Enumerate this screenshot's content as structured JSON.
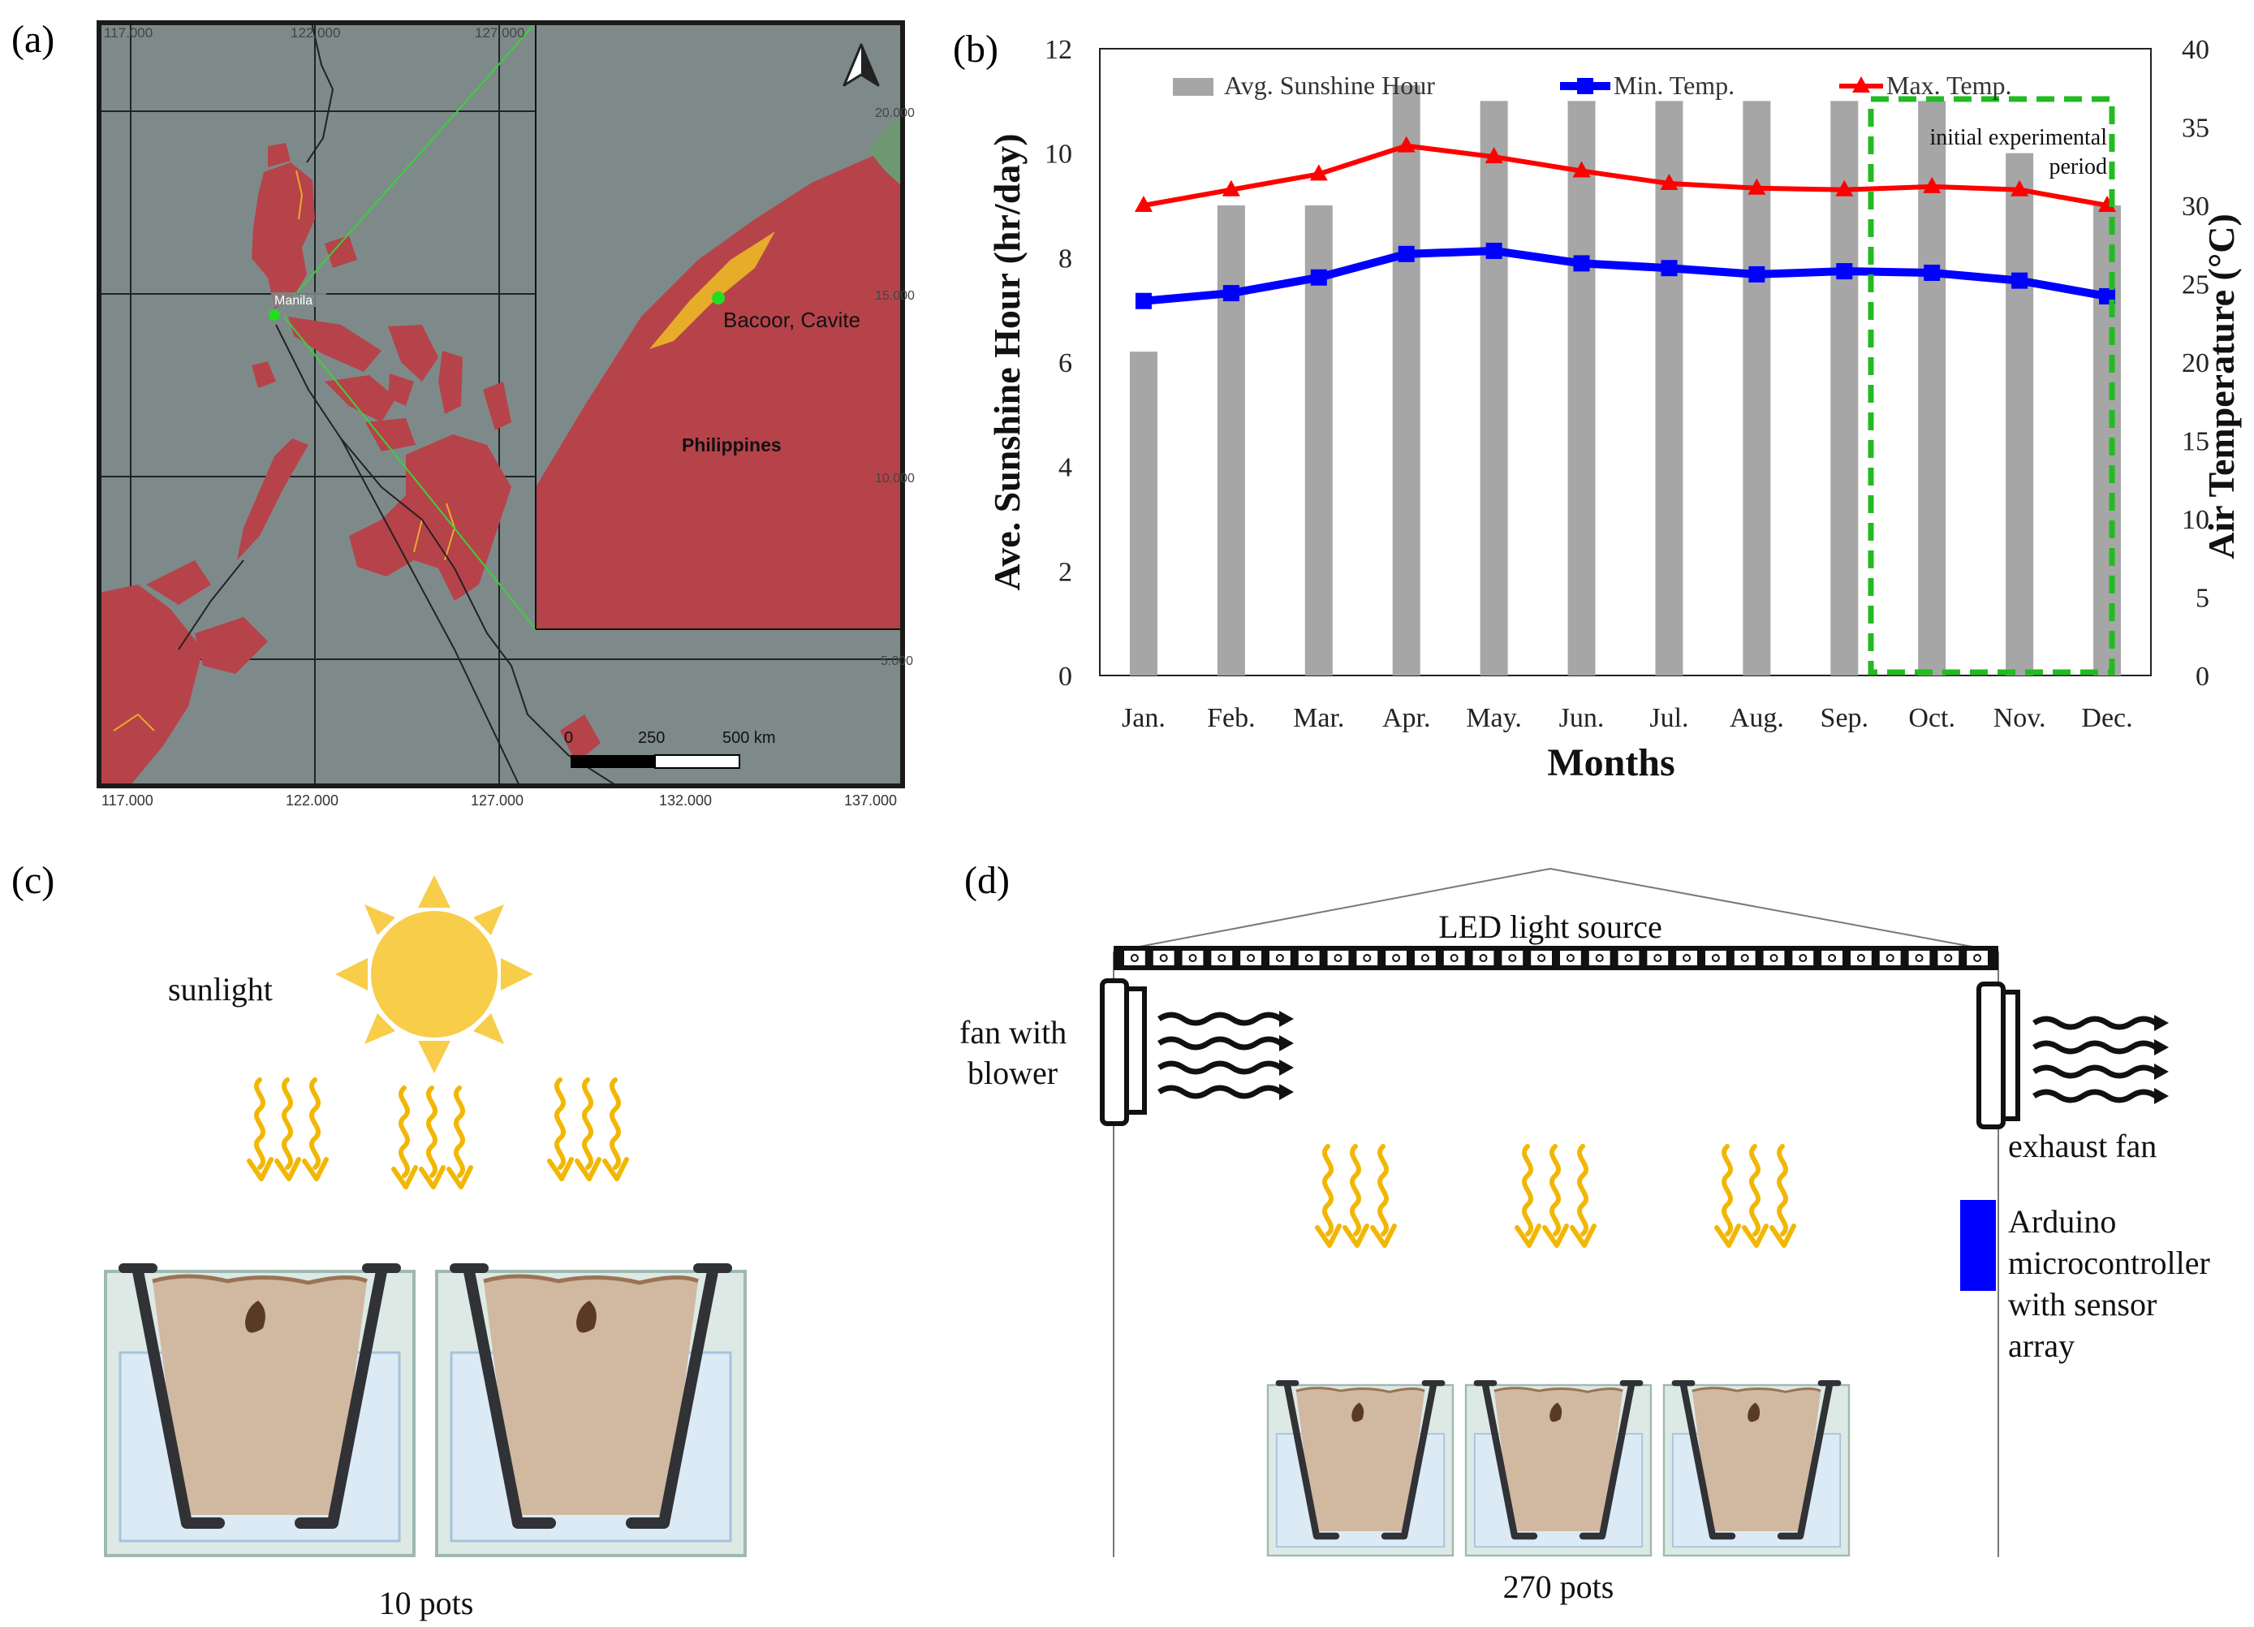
{
  "panels": {
    "a": {
      "label": "(a)"
    },
    "b": {
      "label": "(b)"
    },
    "c": {
      "label": "(c)"
    },
    "d": {
      "label": "(d)"
    }
  },
  "map": {
    "top_ticks": [
      "117.000",
      "122.000",
      "127.000"
    ],
    "bottom_ticks": [
      "117.000",
      "122.000",
      "127.000",
      "132.000",
      "137.000"
    ],
    "right_ticks": [
      "20.000",
      "15.000",
      "10.000",
      "5.000"
    ],
    "city_label": "Manila",
    "inset_site": "Bacoor, Cavite",
    "inset_country": "Philippines",
    "scale_labels": [
      "0",
      "250",
      "500 km"
    ],
    "colors": {
      "sea": "#7e8a89",
      "land": "#b6434a",
      "coast": "#e6ac2a",
      "green": "#6d9872",
      "frame": "#1a1a1a"
    }
  },
  "chart_data": {
    "type": "bar",
    "title": "",
    "categories": [
      "Jan.",
      "Feb.",
      "Mar.",
      "Apr.",
      "May.",
      "Jun.",
      "Jul.",
      "Aug.",
      "Sep.",
      "Oct.",
      "Nov.",
      "Dec."
    ],
    "xlabel": "Months",
    "ylabel": "Ave. Sunshine Hour (hr/day)",
    "y2label": "Air Temperature (°C)",
    "ylim": [
      0,
      12
    ],
    "y2lim": [
      0,
      40
    ],
    "yticks": [
      "0",
      "2",
      "4",
      "6",
      "8",
      "10",
      "12"
    ],
    "y2ticks": [
      "0",
      "5",
      "10",
      "15",
      "20",
      "25",
      "30",
      "35",
      "40"
    ],
    "series": [
      {
        "name": "Avg. Sunshine Hour",
        "type": "bar",
        "axis": "left",
        "color": "#a6a6a6",
        "values": [
          6.2,
          9,
          9,
          11.3,
          11,
          11,
          11,
          11,
          11,
          11,
          10,
          9
        ]
      },
      {
        "name": "Min. Temp.",
        "type": "line",
        "axis": "right",
        "color": "#0000ff",
        "values": [
          23.9,
          24.4,
          25.4,
          26.9,
          27.1,
          26.3,
          26.0,
          25.6,
          25.8,
          25.7,
          25.2,
          24.2
        ]
      },
      {
        "name": "Max. Temp.",
        "type": "line",
        "axis": "right",
        "color": "#ff0000",
        "values": [
          30.0,
          31.0,
          32.0,
          33.8,
          33.1,
          32.2,
          31.4,
          31.1,
          31.0,
          31.2,
          31.0,
          30.0
        ]
      }
    ],
    "annotation": {
      "text_line1": "initial experimental",
      "text_line2": "period",
      "months": [
        "Oct.",
        "Dec."
      ],
      "color": "#22bb22"
    },
    "legend_position": "top"
  },
  "panel_c": {
    "sunlight_label": "sunlight",
    "pots_label": "10 pots",
    "colors": {
      "sun": "#f7cd4a",
      "ray": "#f2b705",
      "soil": "#d2b8a0",
      "water": "#dce9f6",
      "pot": "#303236"
    }
  },
  "panel_d": {
    "led_label": "LED light source",
    "fan_label_line1": "fan with",
    "fan_label_line2": "blower",
    "exhaust_label": "exhaust fan",
    "arduino_lines": [
      "Arduino",
      "microcontroller",
      "with sensor",
      "array"
    ],
    "pots_label": "270 pots",
    "colors": {
      "arduino": "#0000ff"
    }
  }
}
